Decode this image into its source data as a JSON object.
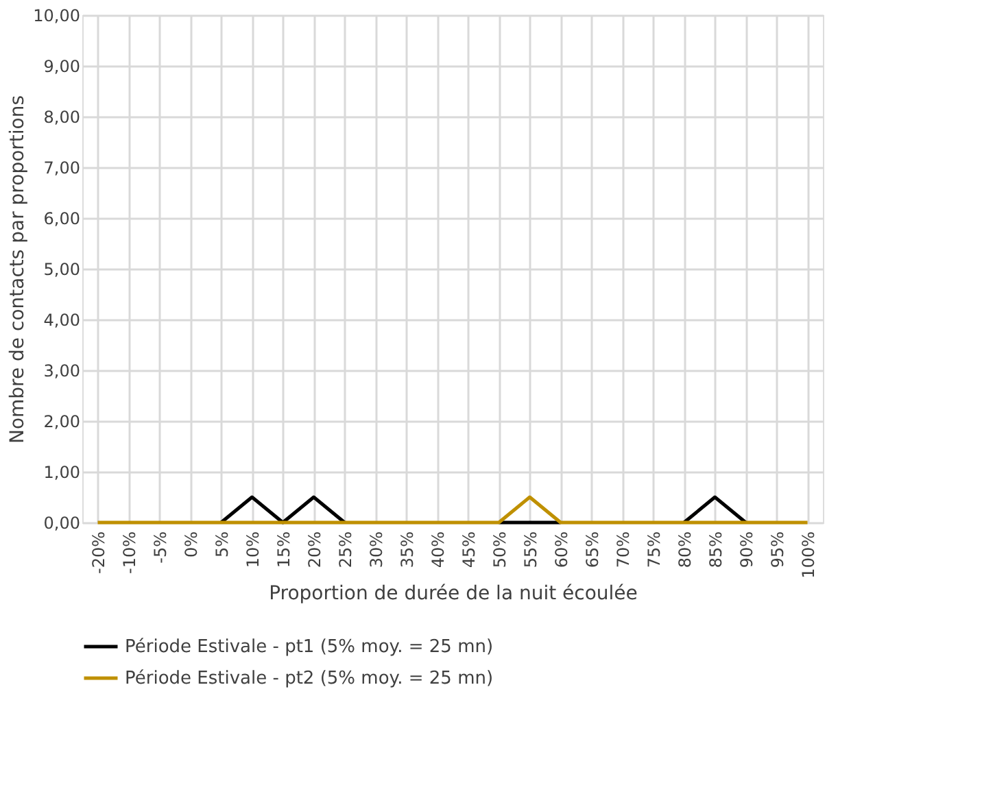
{
  "chart_data": {
    "type": "line",
    "xlabel": "Proportion de durée de la nuit écoulée",
    "ylabel": "Nombre de contacts par proportions",
    "categories": [
      "-20%",
      "-10%",
      "-5%",
      "0%",
      "5%",
      "10%",
      "15%",
      "20%",
      "25%",
      "30%",
      "35%",
      "40%",
      "45%",
      "50%",
      "55%",
      "60%",
      "65%",
      "70%",
      "75%",
      "80%",
      "85%",
      "90%",
      "95%",
      "100%"
    ],
    "series": [
      {
        "name": "Période Estivale - pt1 (5% moy. = 25 mn)",
        "color": "#000000",
        "values": [
          null,
          null,
          null,
          null,
          0,
          0.5,
          0,
          0.5,
          0,
          null,
          null,
          null,
          null,
          0,
          0,
          0,
          null,
          null,
          null,
          0,
          0.5,
          0,
          null,
          null
        ]
      },
      {
        "name": "Période Estivale - pt2 (5% moy. = 25 mn)",
        "color": "#bf9000",
        "values": [
          0,
          0,
          0,
          0,
          0,
          0,
          0,
          0,
          0,
          0,
          0,
          0,
          0,
          0,
          0.5,
          0,
          0,
          0,
          0,
          0,
          0,
          0,
          0,
          0
        ]
      }
    ],
    "ylim": [
      0,
      10
    ],
    "yticks": [
      {
        "value": 0,
        "label": "0,00"
      },
      {
        "value": 1,
        "label": "1,00"
      },
      {
        "value": 2,
        "label": "2,00"
      },
      {
        "value": 3,
        "label": "3,00"
      },
      {
        "value": 4,
        "label": "4,00"
      },
      {
        "value": 5,
        "label": "5,00"
      },
      {
        "value": 6,
        "label": "6,00"
      },
      {
        "value": 7,
        "label": "7,00"
      },
      {
        "value": 8,
        "label": "8,00"
      },
      {
        "value": 9,
        "label": "9,00"
      },
      {
        "value": 10,
        "label": "10,00"
      }
    ],
    "grid": true,
    "legend": "bottom",
    "marker": "none",
    "line_style": "solid"
  }
}
